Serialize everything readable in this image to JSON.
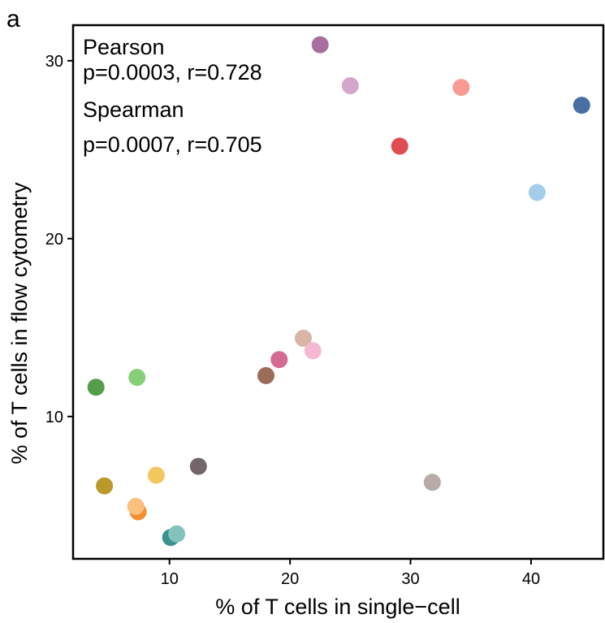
{
  "panel_label": "a",
  "annotations": {
    "pearson_title": "Pearson",
    "pearson_stats": "p=0.0003, r=0.728",
    "spearman_title": "Spearman",
    "spearman_stats": "p=0.0007, r=0.705"
  },
  "chart_data": {
    "type": "scatter",
    "xlabel": "% of T cells in single−cell",
    "ylabel": "% of T cells in flow cytometry",
    "xlim": [
      2,
      46
    ],
    "ylim": [
      2,
      32
    ],
    "xticks": [
      10,
      20,
      30,
      40
    ],
    "yticks": [
      10,
      20,
      30
    ],
    "grid": false,
    "legend": "none",
    "points": [
      {
        "x": 22.5,
        "y": 30.9,
        "color": "#a86f9e"
      },
      {
        "x": 25.0,
        "y": 28.6,
        "color": "#d5a5ca"
      },
      {
        "x": 34.2,
        "y": 28.5,
        "color": "#f99a94"
      },
      {
        "x": 44.2,
        "y": 27.5,
        "color": "#476fa1"
      },
      {
        "x": 29.1,
        "y": 25.2,
        "color": "#e04c52"
      },
      {
        "x": 40.5,
        "y": 22.6,
        "color": "#a5cdea"
      },
      {
        "x": 21.1,
        "y": 14.4,
        "color": "#d8b5a6"
      },
      {
        "x": 21.9,
        "y": 13.7,
        "color": "#f5b7d1"
      },
      {
        "x": 19.1,
        "y": 13.2,
        "color": "#d46a90"
      },
      {
        "x": 18.0,
        "y": 12.3,
        "color": "#9b6c58"
      },
      {
        "x": 7.3,
        "y": 12.2,
        "color": "#86cf78"
      },
      {
        "x": 3.9,
        "y": 11.65,
        "color": "#569d4b"
      },
      {
        "x": 12.4,
        "y": 7.2,
        "color": "#72666b"
      },
      {
        "x": 8.9,
        "y": 6.7,
        "color": "#f2c85e"
      },
      {
        "x": 31.8,
        "y": 6.3,
        "color": "#b7aaa7"
      },
      {
        "x": 4.6,
        "y": 6.1,
        "color": "#b89929"
      },
      {
        "x": 7.4,
        "y": 4.65,
        "color": "#f58c2e"
      },
      {
        "x": 7.2,
        "y": 4.95,
        "color": "#fbbf7e"
      },
      {
        "x": 10.1,
        "y": 3.2,
        "color": "#3d918c"
      },
      {
        "x": 10.6,
        "y": 3.4,
        "color": "#83c2bd"
      }
    ]
  }
}
